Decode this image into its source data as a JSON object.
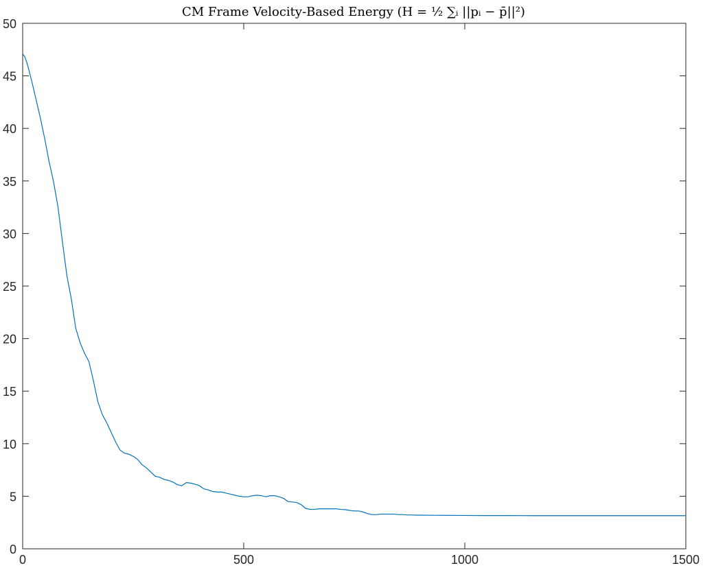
{
  "chart_data": {
    "type": "line",
    "title": "CM Frame Velocity-Based Energy (H = ½ ∑ᵢ ||pᵢ − p̄||²)",
    "xlabel": "",
    "ylabel": "",
    "xlim": [
      0,
      1500
    ],
    "ylim": [
      0,
      50
    ],
    "x_ticks": [
      0,
      500,
      1000,
      1500
    ],
    "y_ticks": [
      0,
      5,
      10,
      15,
      20,
      25,
      30,
      35,
      40,
      45,
      50
    ],
    "grid": false,
    "legend": "none",
    "series": [
      {
        "color": "#0072BD",
        "x": [
          0,
          5,
          10,
          20,
          30,
          40,
          50,
          60,
          70,
          80,
          90,
          100,
          110,
          120,
          130,
          140,
          150,
          160,
          170,
          180,
          190,
          200,
          210,
          220,
          230,
          240,
          250,
          260,
          270,
          280,
          290,
          300,
          310,
          320,
          330,
          340,
          350,
          360,
          370,
          380,
          390,
          400,
          410,
          420,
          430,
          440,
          450,
          460,
          470,
          480,
          490,
          500,
          510,
          520,
          530,
          540,
          550,
          560,
          570,
          580,
          590,
          600,
          610,
          620,
          630,
          640,
          650,
          660,
          670,
          680,
          690,
          700,
          710,
          720,
          730,
          740,
          750,
          760,
          770,
          780,
          790,
          800,
          810,
          820,
          830,
          840,
          850,
          860,
          870,
          880,
          890,
          900,
          950,
          1000,
          1050,
          1100,
          1150,
          1200,
          1250,
          1300,
          1350,
          1400,
          1450,
          1500
        ],
        "y": [
          47.1,
          46.8,
          46.2,
          44.6,
          42.8,
          41.0,
          39.0,
          36.8,
          34.9,
          32.5,
          29.2,
          26.0,
          23.8,
          21.0,
          19.6,
          18.6,
          17.8,
          16.0,
          14.0,
          12.8,
          12.0,
          11.1,
          10.2,
          9.4,
          9.1,
          9.0,
          8.8,
          8.5,
          8.0,
          7.7,
          7.3,
          6.9,
          6.8,
          6.6,
          6.5,
          6.35,
          6.1,
          6.0,
          6.3,
          6.25,
          6.15,
          6.0,
          5.7,
          5.6,
          5.45,
          5.4,
          5.4,
          5.3,
          5.2,
          5.1,
          5.0,
          4.95,
          4.95,
          5.05,
          5.1,
          5.05,
          4.95,
          5.05,
          5.05,
          4.95,
          4.8,
          4.5,
          4.45,
          4.4,
          4.2,
          3.85,
          3.75,
          3.75,
          3.8,
          3.8,
          3.8,
          3.8,
          3.8,
          3.75,
          3.72,
          3.65,
          3.6,
          3.6,
          3.5,
          3.35,
          3.25,
          3.25,
          3.3,
          3.3,
          3.3,
          3.3,
          3.25,
          3.25,
          3.22,
          3.22,
          3.2,
          3.2,
          3.18,
          3.17,
          3.16,
          3.16,
          3.15,
          3.15,
          3.15,
          3.15,
          3.15,
          3.15,
          3.15,
          3.15
        ]
      }
    ]
  }
}
